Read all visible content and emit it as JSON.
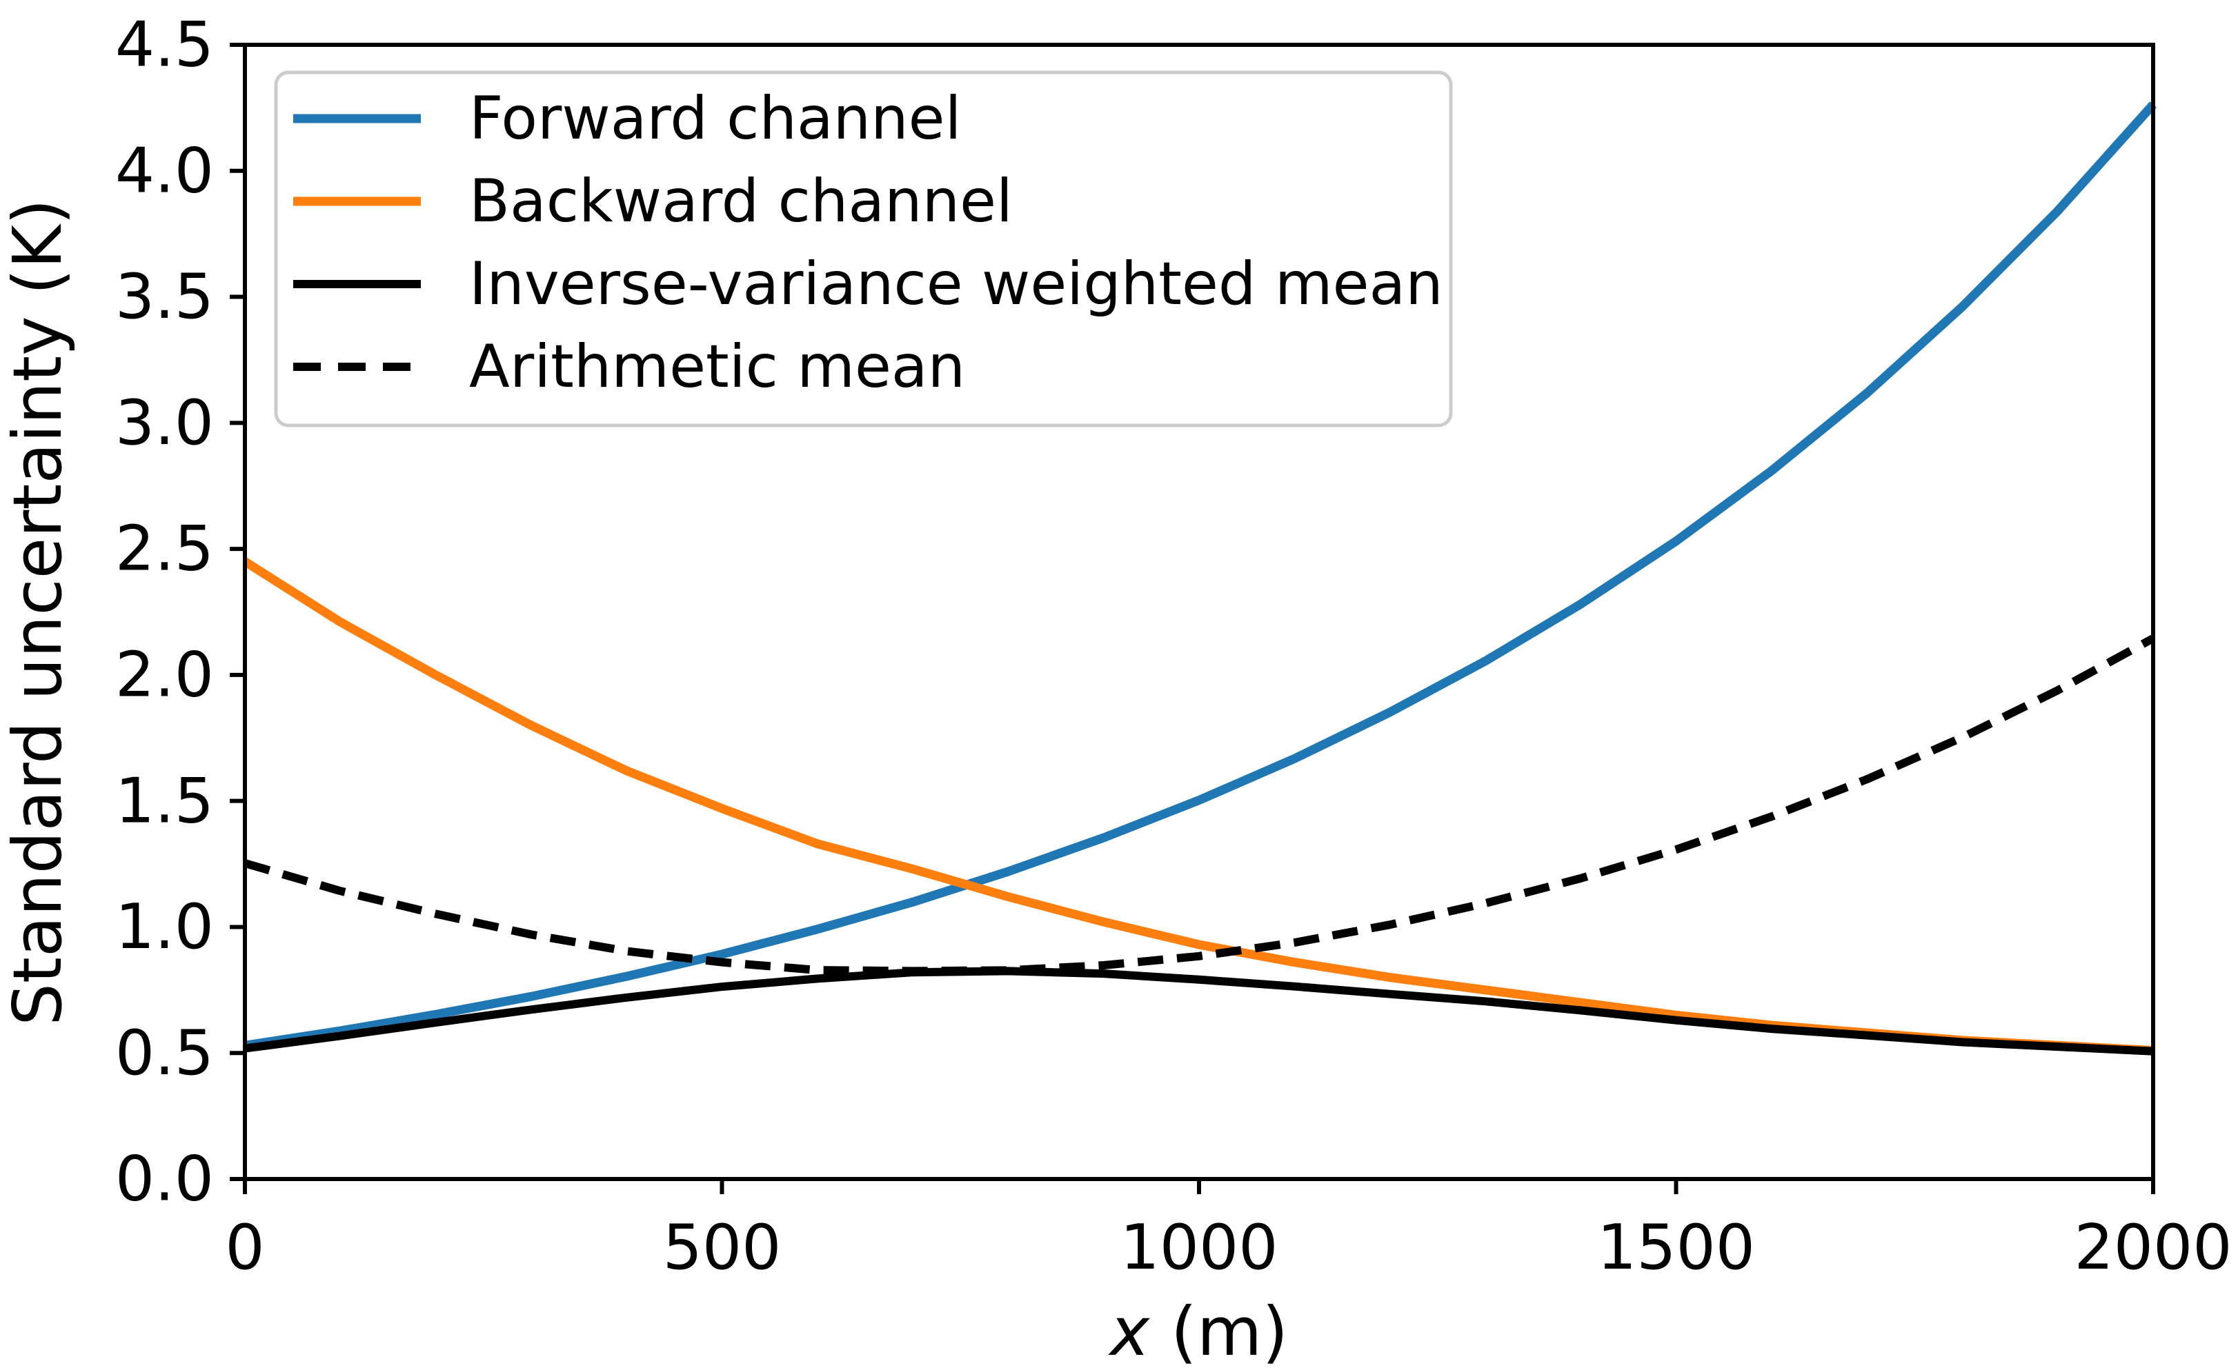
{
  "chart_data": {
    "type": "line",
    "title": "",
    "xlabel": "x (m)",
    "ylabel": "Standard uncertainty (K)",
    "xlim": [
      0,
      2000
    ],
    "ylim": [
      0.0,
      4.5
    ],
    "grid": false,
    "legend_position": "upper left",
    "x_ticks": [
      {
        "value": 0,
        "label": "0"
      },
      {
        "value": 500,
        "label": "500"
      },
      {
        "value": 1000,
        "label": "1000"
      },
      {
        "value": 1500,
        "label": "1500"
      },
      {
        "value": 2000,
        "label": "2000"
      }
    ],
    "y_ticks": [
      {
        "value": 0.0,
        "label": "0.0"
      },
      {
        "value": 0.5,
        "label": "0.5"
      },
      {
        "value": 1.0,
        "label": "1.0"
      },
      {
        "value": 1.5,
        "label": "1.5"
      },
      {
        "value": 2.0,
        "label": "2.0"
      },
      {
        "value": 2.5,
        "label": "2.5"
      },
      {
        "value": 3.0,
        "label": "3.0"
      },
      {
        "value": 3.5,
        "label": "3.5"
      },
      {
        "value": 4.0,
        "label": "4.0"
      },
      {
        "value": 4.5,
        "label": "4.5"
      }
    ],
    "x": [
      0,
      100,
      200,
      300,
      400,
      500,
      600,
      700,
      800,
      900,
      1000,
      1100,
      1200,
      1300,
      1400,
      1500,
      1600,
      1700,
      1800,
      1900,
      2000
    ],
    "series": [
      {
        "name": "Forward channel",
        "color": "#1f77b4",
        "style": "solid",
        "values": [
          0.53,
          0.588,
          0.653,
          0.724,
          0.804,
          0.892,
          0.991,
          1.099,
          1.22,
          1.354,
          1.503,
          1.668,
          1.852,
          2.055,
          2.281,
          2.531,
          2.81,
          3.118,
          3.461,
          3.841,
          4.263
        ]
      },
      {
        "name": "Backward channel",
        "color": "#ff7f0e",
        "style": "solid",
        "values": [
          2.45,
          2.21,
          2.0,
          1.8,
          1.62,
          1.47,
          1.33,
          1.23,
          1.12,
          1.02,
          0.93,
          0.86,
          0.8,
          0.75,
          0.7,
          0.65,
          0.61,
          0.58,
          0.55,
          0.53,
          0.51
        ]
      },
      {
        "name": "Inverse-variance weighted mean",
        "color": "#000000",
        "style": "solid",
        "values": [
          0.518,
          0.568,
          0.621,
          0.672,
          0.72,
          0.763,
          0.795,
          0.82,
          0.825,
          0.815,
          0.791,
          0.764,
          0.734,
          0.705,
          0.669,
          0.63,
          0.596,
          0.57,
          0.543,
          0.525,
          0.507
        ]
      },
      {
        "name": "Arithmetic mean",
        "color": "#000000",
        "style": "dashed",
        "values": [
          1.253,
          1.143,
          1.052,
          0.97,
          0.904,
          0.86,
          0.829,
          0.825,
          0.828,
          0.848,
          0.884,
          0.938,
          1.009,
          1.094,
          1.193,
          1.307,
          1.438,
          1.586,
          1.752,
          1.939,
          2.145
        ]
      }
    ]
  }
}
